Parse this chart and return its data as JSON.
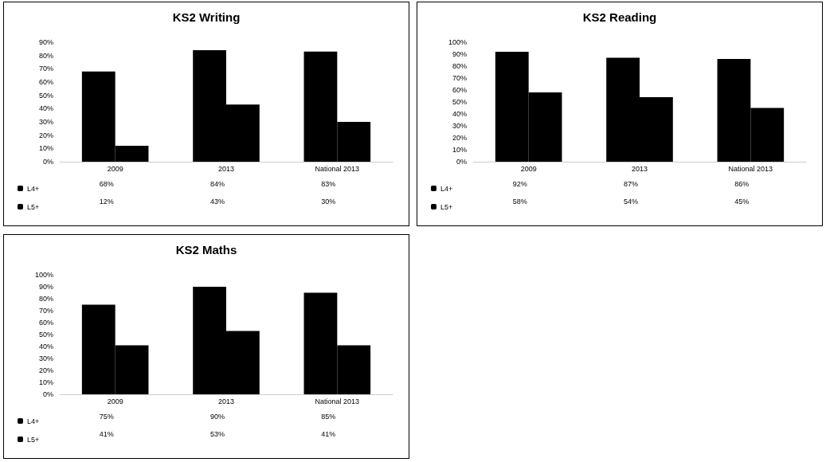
{
  "chart_data": [
    {
      "type": "bar",
      "title": "KS2 Writing",
      "categories": [
        "2009",
        "2013",
        "National 2013"
      ],
      "series": [
        {
          "name": "L4+",
          "color": "#000000",
          "values": [
            68,
            84,
            83
          ],
          "value_labels": [
            "68%",
            "84%",
            "83%"
          ]
        },
        {
          "name": "L5+",
          "color": "#000000",
          "values": [
            12,
            43,
            30
          ],
          "value_labels": [
            "12%",
            "43%",
            "30%"
          ]
        }
      ],
      "ylim": [
        0,
        90
      ],
      "yticks": [
        {
          "value": 0,
          "label": "0%"
        },
        {
          "value": 10,
          "label": "10%"
        },
        {
          "value": 20,
          "label": "20%"
        },
        {
          "value": 30,
          "label": "30%"
        },
        {
          "value": 40,
          "label": "40%"
        },
        {
          "value": 50,
          "label": "50%"
        },
        {
          "value": 60,
          "label": "60%"
        },
        {
          "value": 70,
          "label": "70%"
        },
        {
          "value": 80,
          "label": "80%"
        },
        {
          "value": 90,
          "label": "90%"
        }
      ],
      "grid": false,
      "legend": "bottom left"
    },
    {
      "type": "bar",
      "title": "KS2 Reading",
      "categories": [
        "2009",
        "2013",
        "National 2013"
      ],
      "series": [
        {
          "name": "L4+",
          "color": "#000000",
          "values": [
            92,
            87,
            86
          ],
          "value_labels": [
            "92%",
            "87%",
            "86%"
          ]
        },
        {
          "name": "L5+",
          "color": "#000000",
          "values": [
            58,
            54,
            45
          ],
          "value_labels": [
            "58%",
            "54%",
            "45%"
          ]
        }
      ],
      "ylim": [
        0,
        100
      ],
      "yticks": [
        {
          "value": 0,
          "label": "0%"
        },
        {
          "value": 10,
          "label": "10%"
        },
        {
          "value": 20,
          "label": "20%"
        },
        {
          "value": 30,
          "label": "30%"
        },
        {
          "value": 40,
          "label": "40%"
        },
        {
          "value": 50,
          "label": "50%"
        },
        {
          "value": 60,
          "label": "60%"
        },
        {
          "value": 70,
          "label": "70%"
        },
        {
          "value": 80,
          "label": "80%"
        },
        {
          "value": 90,
          "label": "90%"
        },
        {
          "value": 100,
          "label": "100%"
        }
      ],
      "grid": false,
      "legend": "bottom left"
    },
    {
      "type": "bar",
      "title": "KS2 Maths",
      "categories": [
        "2009",
        "2013",
        "National 2013"
      ],
      "series": [
        {
          "name": "L4+",
          "color": "#000000",
          "values": [
            75,
            90,
            85
          ],
          "value_labels": [
            "75%",
            "90%",
            "85%"
          ]
        },
        {
          "name": "L5+",
          "color": "#000000",
          "values": [
            41,
            53,
            41
          ],
          "value_labels": [
            "41%",
            "53%",
            "41%"
          ]
        }
      ],
      "ylim": [
        0,
        100
      ],
      "yticks": [
        {
          "value": 0,
          "label": "0%"
        },
        {
          "value": 10,
          "label": "10%"
        },
        {
          "value": 20,
          "label": "20%"
        },
        {
          "value": 30,
          "label": "30%"
        },
        {
          "value": 40,
          "label": "40%"
        },
        {
          "value": 50,
          "label": "50%"
        },
        {
          "value": 60,
          "label": "60%"
        },
        {
          "value": 70,
          "label": "70%"
        },
        {
          "value": 80,
          "label": "80%"
        },
        {
          "value": 90,
          "label": "90%"
        },
        {
          "value": 100,
          "label": "100%"
        }
      ],
      "grid": false,
      "legend": "bottom left"
    }
  ]
}
